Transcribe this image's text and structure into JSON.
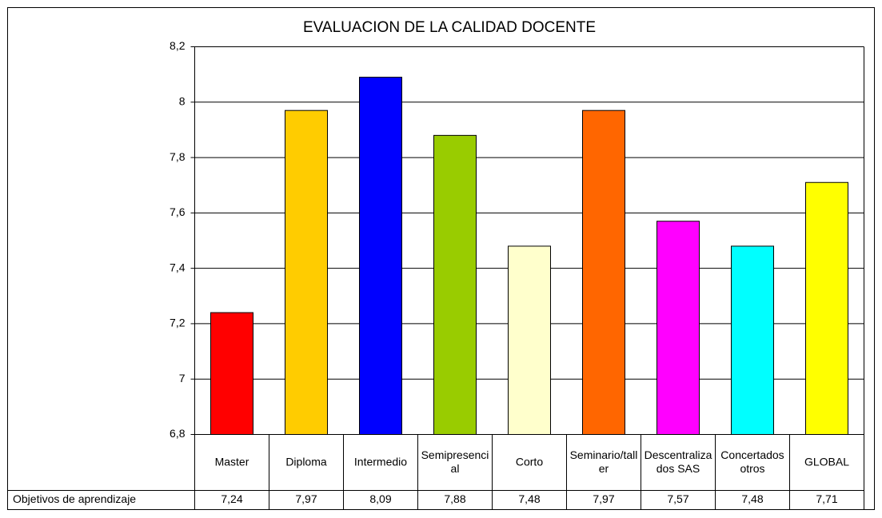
{
  "chart_data": {
    "type": "bar",
    "title": "EVALUACION DE LA CALIDAD DOCENTE",
    "categories": [
      "Master",
      "Diploma",
      "Intermedio",
      "Semipresencial",
      "Corto",
      "Seminario/taller",
      "Descentralizados SAS",
      "Concertados otros",
      "GLOBAL"
    ],
    "series": [
      {
        "name": "Objetivos de aprendizaje",
        "colors": [
          "#ff0000",
          "#ffcc00",
          "#0000ff",
          "#99cc00",
          "#ffffcc",
          "#ff6600",
          "#ff00ff",
          "#00ffff",
          "#ffff00"
        ],
        "values": [
          7.24,
          7.97,
          8.09,
          7.88,
          7.48,
          7.97,
          7.57,
          7.48,
          7.71
        ],
        "value_labels": [
          "7,24",
          "7,97",
          "8,09",
          "7,88",
          "7,48",
          "7,97",
          "7,57",
          "7,48",
          "7,71"
        ]
      }
    ],
    "ylim": [
      6.8,
      8.2
    ],
    "yticks": [
      {
        "value": 6.8,
        "label": "6,8"
      },
      7,
      {
        "value": 7.2,
        "label": "7,2"
      },
      {
        "value": 7.4,
        "label": "7,4"
      },
      {
        "value": 7.6,
        "label": "7,6"
      },
      {
        "value": 7.8,
        "label": "7,8"
      },
      8,
      {
        "value": 8.2,
        "label": "8,2"
      }
    ],
    "grid": true
  }
}
